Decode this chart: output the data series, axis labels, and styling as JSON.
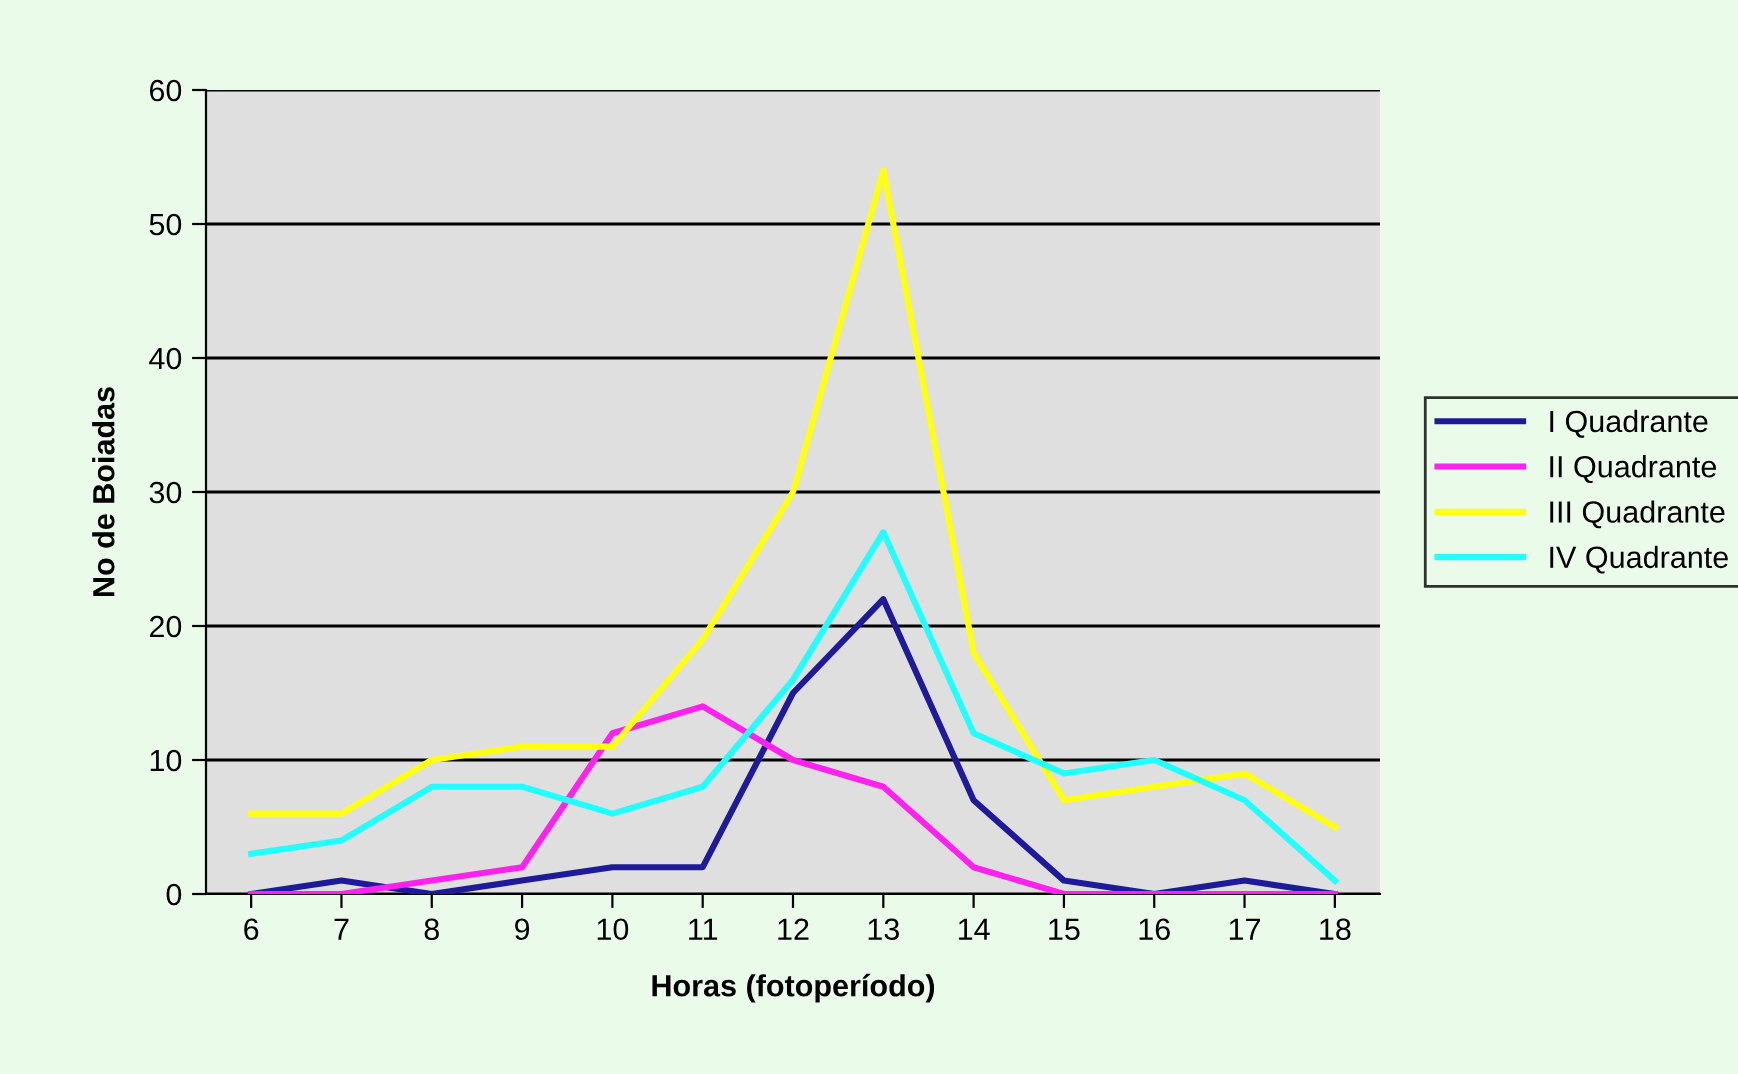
{
  "chart_data": {
    "type": "line",
    "xlabel": "Horas (fotoperíodo)",
    "ylabel": "No de Boiadas",
    "categories": [
      "6",
      "7",
      "8",
      "9",
      "10",
      "11",
      "12",
      "13",
      "14",
      "15",
      "16",
      "17",
      "18"
    ],
    "series": [
      {
        "name": "I Quadrante",
        "color": "#1f1a99",
        "values": [
          0,
          1,
          0,
          1,
          2,
          2,
          15,
          22,
          7,
          1,
          0,
          1,
          0
        ]
      },
      {
        "name": "II Quadrante",
        "color": "#ff22ee",
        "values": [
          0,
          0,
          1,
          2,
          12,
          14,
          10,
          8,
          2,
          0,
          0,
          0,
          0
        ]
      },
      {
        "name": "III Quadrante",
        "color": "#ffff11",
        "values": [
          6,
          6,
          10,
          11,
          11,
          19,
          30,
          54,
          18,
          7,
          8,
          9,
          5
        ]
      },
      {
        "name": "IV Quadrante",
        "color": "#22ffff",
        "values": [
          3,
          4,
          8,
          8,
          6,
          8,
          16,
          27,
          12,
          9,
          10,
          7,
          1
        ]
      }
    ],
    "ylim": [
      0,
      60
    ],
    "yticks": [
      0,
      10,
      20,
      30,
      40,
      50,
      60
    ],
    "grid": "y",
    "legend": "right",
    "marker": "none",
    "line_style": "solid"
  }
}
